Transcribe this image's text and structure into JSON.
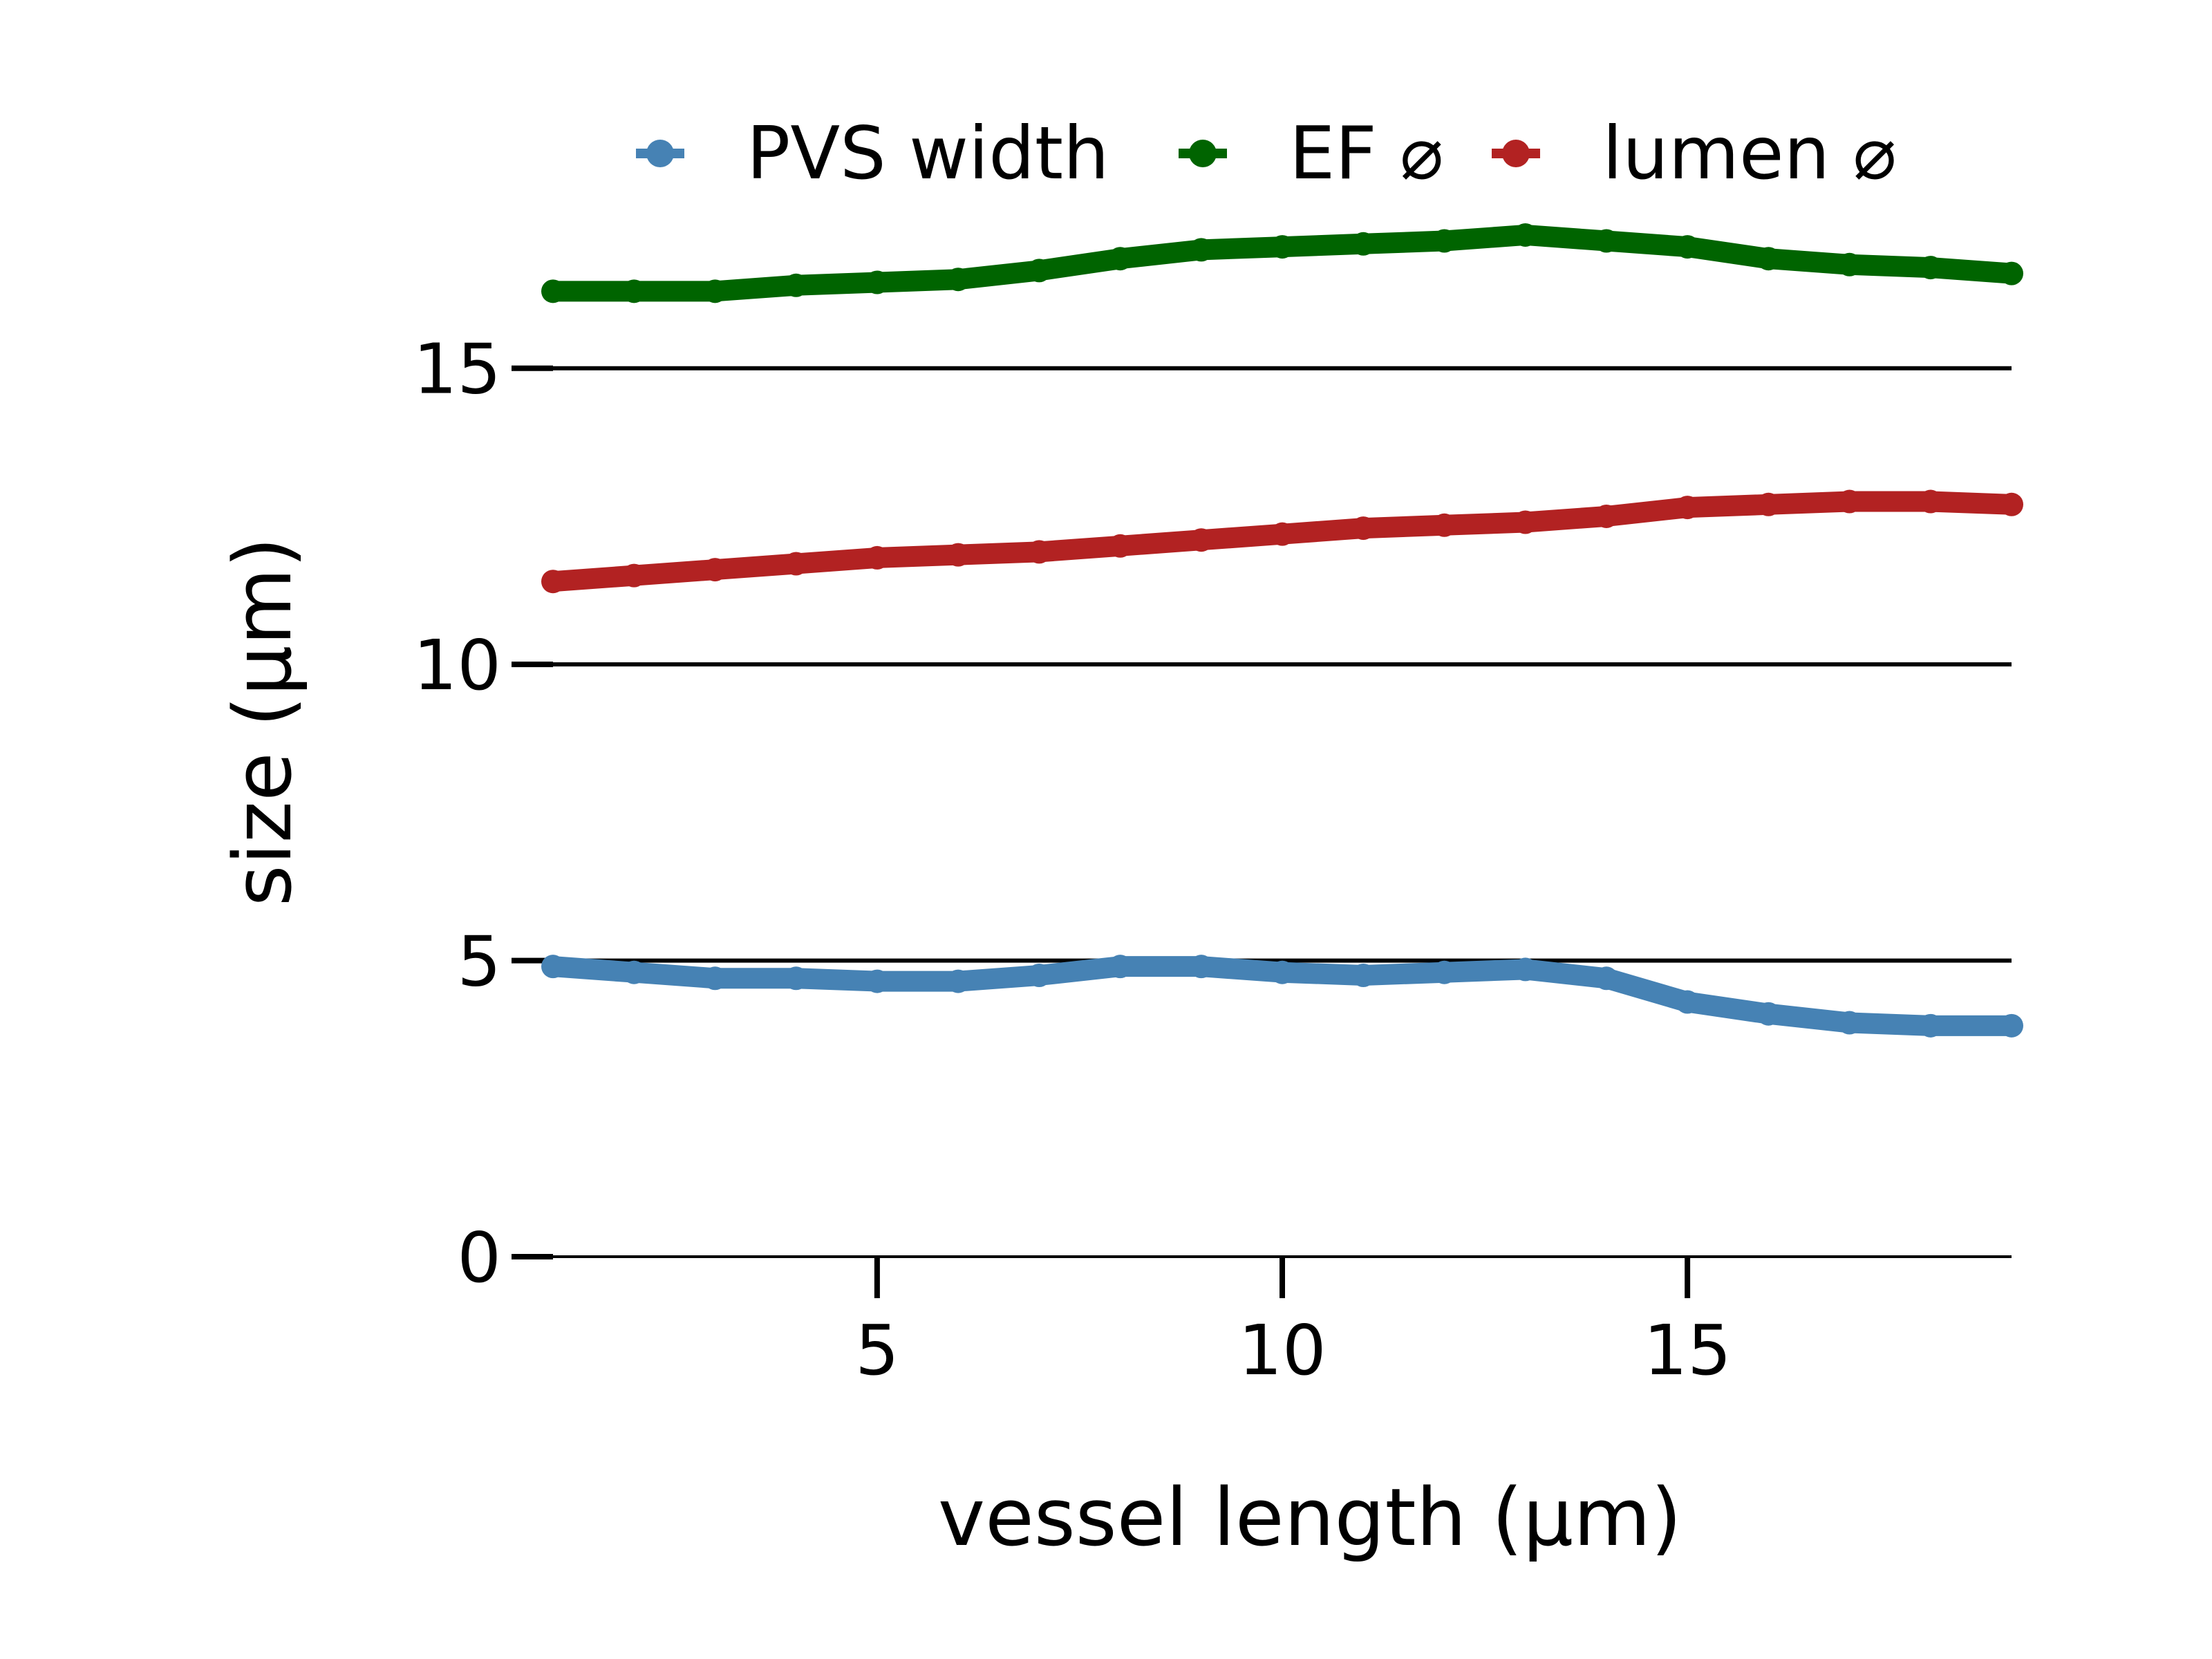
{
  "chart_data": {
    "type": "line",
    "title": "",
    "xlabel": "vessel length (μm)",
    "ylabel": "size (μm)",
    "xlim": [
      1.0,
      19.0
    ],
    "ylim": [
      0,
      19
    ],
    "xticks": [
      5,
      10,
      15
    ],
    "xtick_labels": [
      "5",
      "10",
      "15"
    ],
    "yticks": [
      0,
      5,
      10,
      15
    ],
    "ytick_labels": [
      "0",
      "5",
      "10",
      "15"
    ],
    "grid": "horizontal",
    "legend_position": "top",
    "series": [
      {
        "name": "PVS width",
        "color": "#4682b4",
        "x": [
          1,
          2,
          3,
          4,
          5,
          6,
          7,
          8,
          9,
          10,
          11,
          12,
          13,
          14,
          15,
          16,
          17,
          18,
          19
        ],
        "y": [
          4.9,
          4.8,
          4.7,
          4.7,
          4.65,
          4.65,
          4.75,
          4.9,
          4.9,
          4.8,
          4.75,
          4.8,
          4.85,
          4.7,
          4.3,
          4.1,
          3.95,
          3.9,
          3.9
        ]
      },
      {
        "name": "EF ⌀",
        "color": "#006400",
        "x": [
          1,
          2,
          3,
          4,
          5,
          6,
          7,
          8,
          9,
          10,
          11,
          12,
          13,
          14,
          15,
          16,
          17,
          18,
          19
        ],
        "y": [
          16.3,
          16.3,
          16.3,
          16.4,
          16.45,
          16.5,
          16.65,
          16.85,
          17.0,
          17.05,
          17.1,
          17.15,
          17.25,
          17.15,
          17.05,
          16.85,
          16.75,
          16.7,
          16.6
        ]
      },
      {
        "name": "lumen ⌀",
        "color": "#b22222",
        "x": [
          1,
          2,
          3,
          4,
          5,
          6,
          7,
          8,
          9,
          10,
          11,
          12,
          13,
          14,
          15,
          16,
          17,
          18,
          19
        ],
        "y": [
          11.4,
          11.5,
          11.6,
          11.7,
          11.8,
          11.85,
          11.9,
          12.0,
          12.1,
          12.2,
          12.3,
          12.35,
          12.4,
          12.5,
          12.65,
          12.7,
          12.75,
          12.75,
          12.7
        ]
      }
    ]
  }
}
